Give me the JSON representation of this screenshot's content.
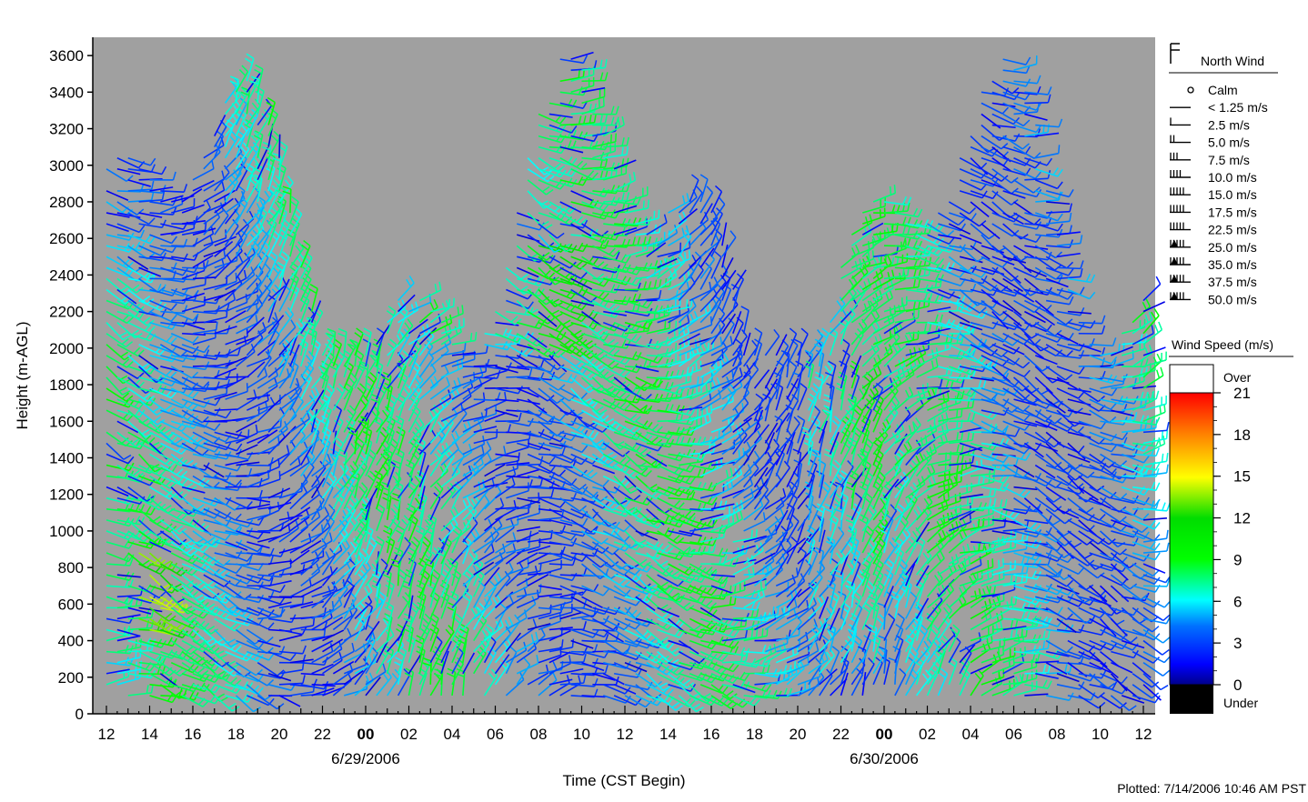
{
  "chart_data": {
    "type": "wind-barb",
    "ylabel": "Height (m-AGL)",
    "xlabel": "Time (CST Begin)",
    "ylim": [
      0,
      3700
    ],
    "y_ticks": [
      "0",
      "200",
      "400",
      "600",
      "800",
      "1000",
      "1200",
      "1400",
      "1600",
      "1800",
      "2000",
      "2200",
      "2400",
      "2600",
      "2800",
      "3000",
      "3200",
      "3400",
      "3600"
    ],
    "x_ticks": [
      {
        "label": "12",
        "bold": false
      },
      {
        "label": "14",
        "bold": false
      },
      {
        "label": "16",
        "bold": false
      },
      {
        "label": "18",
        "bold": false
      },
      {
        "label": "20",
        "bold": false
      },
      {
        "label": "22",
        "bold": false
      },
      {
        "label": "00",
        "bold": true
      },
      {
        "label": "02",
        "bold": false
      },
      {
        "label": "04",
        "bold": false
      },
      {
        "label": "06",
        "bold": false
      },
      {
        "label": "08",
        "bold": false
      },
      {
        "label": "10",
        "bold": false
      },
      {
        "label": "12",
        "bold": false
      },
      {
        "label": "14",
        "bold": false
      },
      {
        "label": "16",
        "bold": false
      },
      {
        "label": "18",
        "bold": false
      },
      {
        "label": "20",
        "bold": false
      },
      {
        "label": "22",
        "bold": false
      },
      {
        "label": "00",
        "bold": true
      },
      {
        "label": "02",
        "bold": false
      },
      {
        "label": "04",
        "bold": false
      },
      {
        "label": "06",
        "bold": false
      },
      {
        "label": "08",
        "bold": false
      },
      {
        "label": "10",
        "bold": false
      },
      {
        "label": "12",
        "bold": false
      }
    ],
    "x_range_hours": [
      0,
      48
    ],
    "date_labels": [
      {
        "label": "6/29/2006",
        "hour": 12
      },
      {
        "label": "6/30/2006",
        "hour": 36
      }
    ],
    "colors": {
      "plot_bg": "#a0a0a0"
    },
    "legend": {
      "barb_title": "North Wind",
      "barb_entries": [
        "Calm",
        "< 1.25 m/s",
        "2.5 m/s",
        "5.0 m/s",
        "7.5 m/s",
        "10.0 m/s",
        "15.0 m/s",
        "17.5 m/s",
        "22.5 m/s",
        "25.0 m/s",
        "35.0 m/s",
        "37.5 m/s",
        "50.0 m/s"
      ],
      "colorbar_title": "Wind Speed (m/s)",
      "colorbar_over": "Over",
      "colorbar_under": "Under",
      "colorbar_ticks": [
        "0",
        "3",
        "6",
        "9",
        "12",
        "15",
        "18",
        "21"
      ],
      "colorbar_range": [
        0,
        21
      ]
    },
    "footer": "Plotted: 7/14/2006 10:46 AM PST"
  }
}
